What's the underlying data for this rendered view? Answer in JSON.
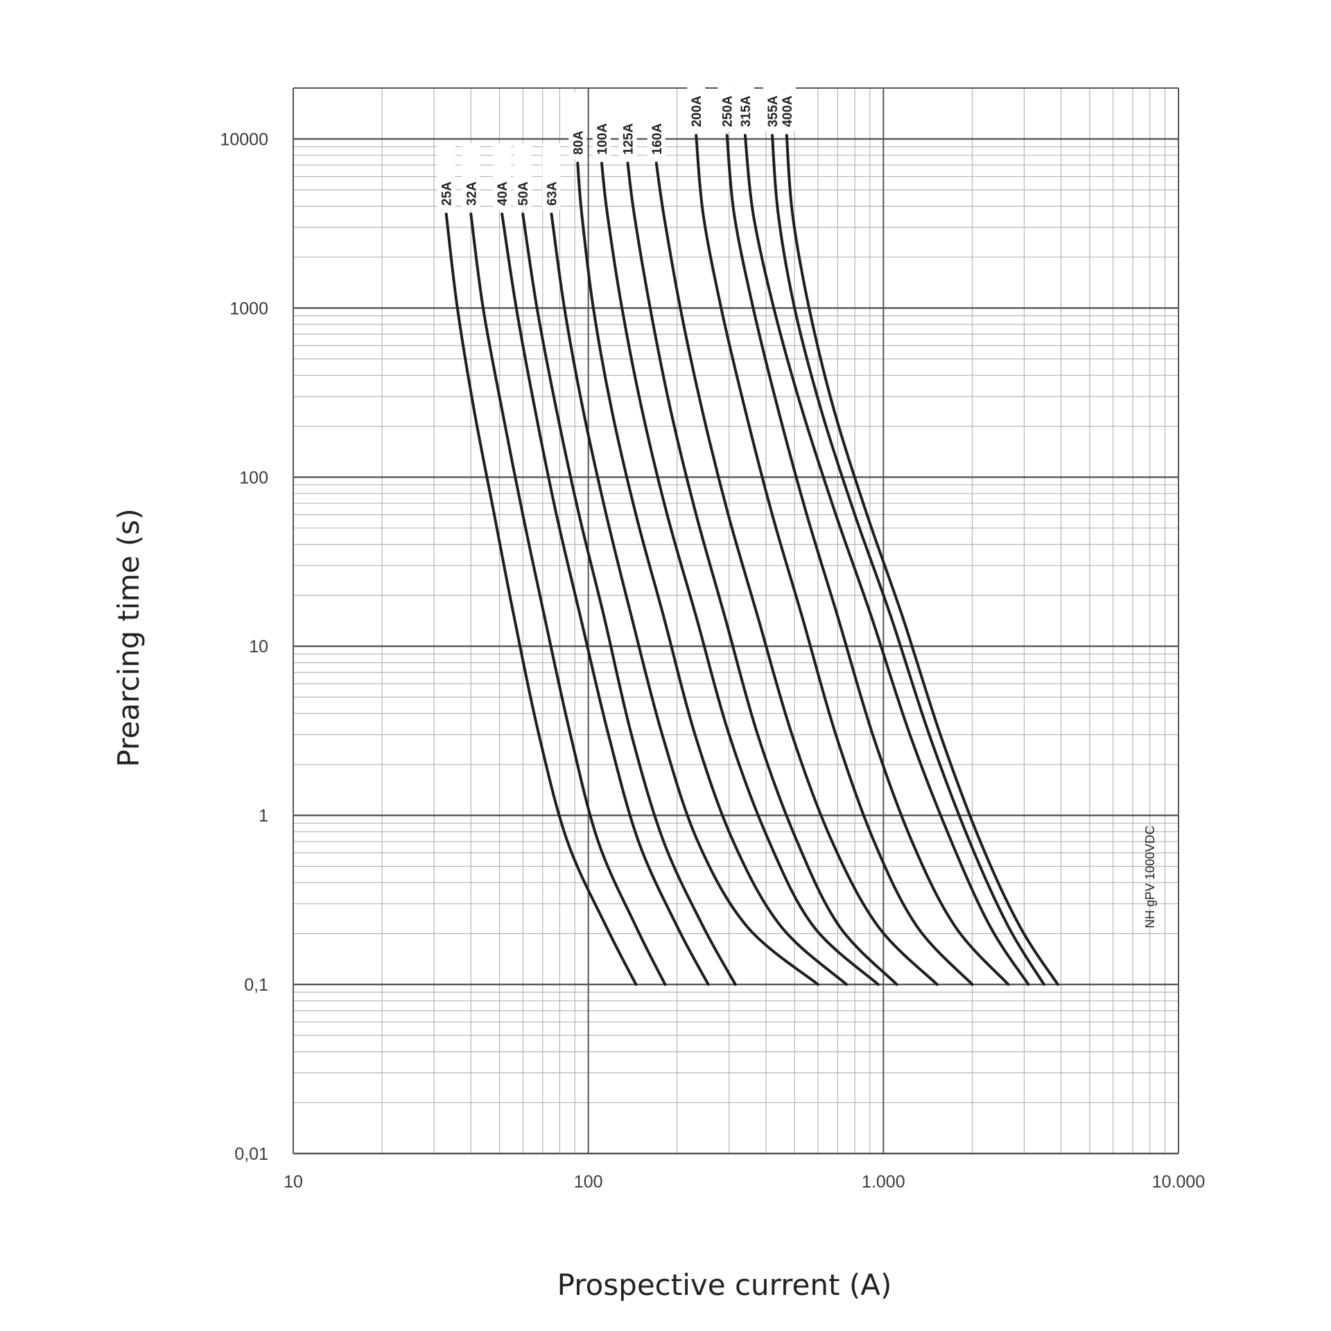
{
  "chart_data": {
    "type": "line",
    "xlabel": "Prospective current (A)",
    "ylabel": "Prearcing time (s)",
    "x_scale": "log",
    "y_scale": "log",
    "xlim": [
      10,
      10000
    ],
    "ylim": [
      0.01,
      20000
    ],
    "grid": true,
    "x_ticks": [
      {
        "value": 10,
        "label": "10"
      },
      {
        "value": 100,
        "label": "100"
      },
      {
        "value": 1000,
        "label": "1.000"
      },
      {
        "value": 10000,
        "label": "10.000"
      }
    ],
    "y_ticks": [
      {
        "value": 0.01,
        "label": "0,01"
      },
      {
        "value": 0.1,
        "label": "0,1"
      },
      {
        "value": 1,
        "label": "1"
      },
      {
        "value": 10,
        "label": "10"
      },
      {
        "value": 100,
        "label": "100"
      },
      {
        "value": 1000,
        "label": "1000"
      },
      {
        "value": 10000,
        "label": "10000"
      }
    ],
    "annotation": "NH  gPV 1000VDC",
    "series": [
      {
        "name": "25A",
        "points": [
          [
            33,
            3600
          ],
          [
            36,
            1000
          ],
          [
            41,
            250
          ],
          [
            48,
            60
          ],
          [
            56,
            15
          ],
          [
            68,
            3
          ],
          [
            85,
            0.7
          ],
          [
            115,
            0.22
          ],
          [
            145,
            0.1
          ]
        ]
      },
      {
        "name": "32A",
        "points": [
          [
            40,
            3600
          ],
          [
            44,
            1000
          ],
          [
            51,
            250
          ],
          [
            60,
            60
          ],
          [
            71,
            15
          ],
          [
            87,
            3
          ],
          [
            108,
            0.7
          ],
          [
            145,
            0.22
          ],
          [
            182,
            0.1
          ]
        ]
      },
      {
        "name": "40A",
        "points": [
          [
            51,
            3600
          ],
          [
            57,
            1000
          ],
          [
            66,
            250
          ],
          [
            78,
            60
          ],
          [
            94,
            15
          ],
          [
            117,
            3
          ],
          [
            148,
            0.7
          ],
          [
            200,
            0.22
          ],
          [
            255,
            0.1
          ]
        ]
      },
      {
        "name": "50A",
        "points": [
          [
            60,
            3600
          ],
          [
            67,
            1000
          ],
          [
            78,
            250
          ],
          [
            93,
            60
          ],
          [
            113,
            15
          ],
          [
            140,
            3
          ],
          [
            180,
            0.7
          ],
          [
            245,
            0.22
          ],
          [
            315,
            0.1
          ]
        ]
      },
      {
        "name": "63A",
        "points": [
          [
            75,
            3600
          ],
          [
            83,
            1000
          ],
          [
            96,
            250
          ],
          [
            115,
            60
          ],
          [
            140,
            15
          ],
          [
            178,
            3
          ],
          [
            235,
            0.7
          ],
          [
            345,
            0.22
          ],
          [
            600,
            0.1
          ]
        ]
      },
      {
        "name": "80A",
        "points": [
          [
            92,
            7200
          ],
          [
            95,
            3600
          ],
          [
            104,
            1000
          ],
          [
            120,
            250
          ],
          [
            145,
            60
          ],
          [
            180,
            15
          ],
          [
            230,
            3
          ],
          [
            310,
            0.7
          ],
          [
            450,
            0.22
          ],
          [
            750,
            0.1
          ]
        ]
      },
      {
        "name": "100A",
        "points": [
          [
            111,
            7200
          ],
          [
            116,
            3600
          ],
          [
            130,
            1000
          ],
          [
            152,
            250
          ],
          [
            185,
            60
          ],
          [
            232,
            15
          ],
          [
            300,
            3
          ],
          [
            410,
            0.7
          ],
          [
            580,
            0.22
          ],
          [
            960,
            0.1
          ]
        ]
      },
      {
        "name": "125A",
        "points": [
          [
            136,
            7200
          ],
          [
            143,
            3600
          ],
          [
            162,
            1000
          ],
          [
            190,
            250
          ],
          [
            232,
            60
          ],
          [
            290,
            15
          ],
          [
            375,
            3
          ],
          [
            510,
            0.7
          ],
          [
            710,
            0.22
          ],
          [
            1110,
            0.1
          ]
        ]
      },
      {
        "name": "160A",
        "points": [
          [
            170,
            7200
          ],
          [
            180,
            3600
          ],
          [
            205,
            1000
          ],
          [
            243,
            250
          ],
          [
            298,
            60
          ],
          [
            375,
            15
          ],
          [
            490,
            3
          ],
          [
            670,
            0.7
          ],
          [
            960,
            0.22
          ],
          [
            1520,
            0.1
          ]
        ]
      },
      {
        "name": "200A",
        "points": [
          [
            232,
            10500
          ],
          [
            245,
            3600
          ],
          [
            282,
            1000
          ],
          [
            340,
            250
          ],
          [
            420,
            60
          ],
          [
            530,
            15
          ],
          [
            690,
            3
          ],
          [
            930,
            0.7
          ],
          [
            1300,
            0.22
          ],
          [
            2000,
            0.1
          ]
        ]
      },
      {
        "name": "250A",
        "points": [
          [
            295,
            10500
          ],
          [
            312,
            3600
          ],
          [
            362,
            1000
          ],
          [
            440,
            250
          ],
          [
            550,
            60
          ],
          [
            700,
            15
          ],
          [
            920,
            3
          ],
          [
            1250,
            0.7
          ],
          [
            1750,
            0.22
          ],
          [
            2650,
            0.1
          ]
        ]
      },
      {
        "name": "315A",
        "points": [
          [
            340,
            10500
          ],
          [
            362,
            3600
          ],
          [
            425,
            1000
          ],
          [
            530,
            250
          ],
          [
            690,
            60
          ],
          [
            910,
            15
          ],
          [
            1230,
            3
          ],
          [
            1700,
            0.7
          ],
          [
            2300,
            0.22
          ],
          [
            3100,
            0.1
          ]
        ]
      },
      {
        "name": "355A",
        "points": [
          [
            420,
            10500
          ],
          [
            440,
            3600
          ],
          [
            500,
            1000
          ],
          [
            615,
            250
          ],
          [
            800,
            60
          ],
          [
            1060,
            15
          ],
          [
            1430,
            3
          ],
          [
            1960,
            0.7
          ],
          [
            2650,
            0.22
          ],
          [
            3500,
            0.1
          ]
        ]
      },
      {
        "name": "400A",
        "points": [
          [
            470,
            10500
          ],
          [
            492,
            3600
          ],
          [
            560,
            1000
          ],
          [
            680,
            250
          ],
          [
            880,
            60
          ],
          [
            1160,
            15
          ],
          [
            1560,
            3
          ],
          [
            2130,
            0.7
          ],
          [
            2900,
            0.22
          ],
          [
            3900,
            0.1
          ]
        ]
      }
    ]
  }
}
